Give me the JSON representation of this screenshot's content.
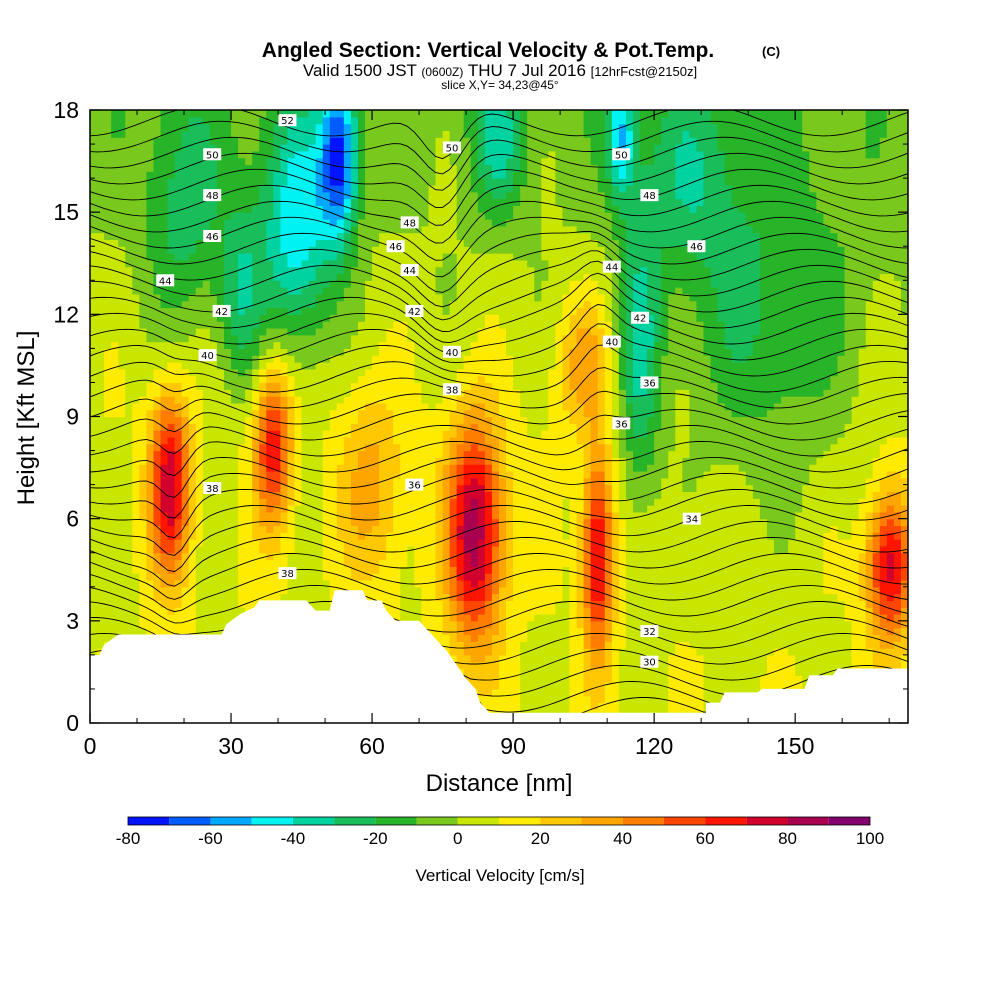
{
  "chart_data": {
    "type": "heatmap",
    "title": "Angled Section: Vertical Velocity & Pot.Temp.",
    "title_unit": "(C)",
    "subtitle": {
      "valid": "Valid 1500 JST",
      "utc": "(0600Z)",
      "date": "THU 7 Jul 2016",
      "fcst": "[12hrFcst@2150z]"
    },
    "slice_label": "slice X,Y= 34,23@45°",
    "xlabel": "Distance [nm]",
    "ylabel": "Height [Kft MSL]",
    "xlim": [
      0,
      174
    ],
    "ylim": [
      0,
      18
    ],
    "x_ticks": [
      "0",
      "30",
      "60",
      "90",
      "120",
      "150"
    ],
    "x_tick_values": [
      0,
      30,
      60,
      90,
      120,
      150
    ],
    "y_ticks": [
      "0",
      "3",
      "6",
      "9",
      "12",
      "15",
      "18"
    ],
    "y_tick_values": [
      0,
      3,
      6,
      9,
      12,
      15,
      18
    ],
    "colorbar": {
      "label": "Vertical Velocity [cm/s]",
      "levels": [
        -80,
        -70,
        -60,
        -50,
        -40,
        -30,
        -20,
        -10,
        0,
        10,
        20,
        30,
        40,
        50,
        60,
        70,
        80,
        90,
        100
      ],
      "tick_labels": [
        "-80",
        "-60",
        "-40",
        "-20",
        "0",
        "20",
        "40",
        "60",
        "80",
        "100"
      ],
      "colors": [
        "#0014ff",
        "#005cff",
        "#00a8ff",
        "#00f2f2",
        "#00d2a0",
        "#19be5a",
        "#28b428",
        "#78c81e",
        "#c8e600",
        "#ffeb00",
        "#ffc800",
        "#ffa500",
        "#ff7d00",
        "#ff4600",
        "#ff1400",
        "#d2002d",
        "#aa0050",
        "#82006e"
      ]
    },
    "terrain": [
      [
        0,
        2.0
      ],
      [
        2,
        2.0
      ],
      [
        3,
        2.3
      ],
      [
        6,
        2.6
      ],
      [
        28,
        2.6
      ],
      [
        29,
        2.9
      ],
      [
        32,
        3.2
      ],
      [
        35,
        3.4
      ],
      [
        36,
        3.6
      ],
      [
        46,
        3.6
      ],
      [
        48,
        3.3
      ],
      [
        51,
        3.3
      ],
      [
        52,
        3.9
      ],
      [
        58,
        3.9
      ],
      [
        59,
        3.6
      ],
      [
        62,
        3.6
      ],
      [
        63,
        3.3
      ],
      [
        65,
        3.0
      ],
      [
        70,
        3.0
      ],
      [
        72,
        2.7
      ],
      [
        74,
        2.4
      ],
      [
        76,
        2.1
      ],
      [
        78,
        1.7
      ],
      [
        80,
        1.3
      ],
      [
        82,
        1.0
      ],
      [
        83,
        0.6
      ],
      [
        85,
        0.3
      ],
      [
        131,
        0.3
      ],
      [
        131,
        0.6
      ],
      [
        134,
        0.6
      ],
      [
        135,
        0.9
      ],
      [
        142,
        0.9
      ],
      [
        143,
        1.0
      ],
      [
        152,
        1.0
      ],
      [
        153,
        1.4
      ],
      [
        158,
        1.4
      ],
      [
        159,
        1.6
      ],
      [
        174,
        1.6
      ]
    ],
    "features": [
      {
        "sign": "up",
        "x": 17,
        "y": 7.0,
        "sx": 3.0,
        "sy": 1.9,
        "amp": 68
      },
      {
        "sign": "up",
        "x": 39,
        "y": 8.2,
        "sx": 2.8,
        "sy": 1.7,
        "amp": 58
      },
      {
        "sign": "up",
        "x": 82,
        "y": 5.6,
        "sx": 4.2,
        "sy": 2.3,
        "amp": 78
      },
      {
        "sign": "up",
        "x": 108,
        "y": 4.9,
        "sx": 2.3,
        "sy": 2.1,
        "amp": 68
      },
      {
        "sign": "up",
        "x": 170,
        "y": 4.6,
        "sx": 3.4,
        "sy": 1.6,
        "amp": 66
      },
      {
        "sign": "up",
        "x": 60,
        "y": 7.0,
        "sx": 5.0,
        "sy": 2.0,
        "amp": 25
      },
      {
        "sign": "up",
        "x": 105,
        "y": 10.6,
        "sx": 4.0,
        "sy": 1.4,
        "amp": 28
      },
      {
        "sign": "down",
        "x": 53,
        "y": 16.6,
        "sx": 2.8,
        "sy": 1.7,
        "amp": 68
      },
      {
        "sign": "down",
        "x": 44,
        "y": 14.5,
        "sx": 5.5,
        "sy": 2.5,
        "amp": 48
      },
      {
        "sign": "down",
        "x": 32,
        "y": 12.5,
        "sx": 3.5,
        "sy": 2.0,
        "amp": 28
      },
      {
        "sign": "down",
        "x": 113,
        "y": 17.2,
        "sx": 2.2,
        "sy": 1.3,
        "amp": 45
      },
      {
        "sign": "down",
        "x": 117,
        "y": 10.5,
        "sx": 3.2,
        "sy": 3.0,
        "amp": 35
      },
      {
        "sign": "down",
        "x": 144,
        "y": 11.5,
        "sx": 14.0,
        "sy": 3.5,
        "amp": 25
      },
      {
        "sign": "down",
        "x": 87,
        "y": 17.0,
        "sx": 4.0,
        "sy": 1.5,
        "amp": 30
      },
      {
        "sign": "down",
        "x": 20,
        "y": 15.0,
        "sx": 6.0,
        "sy": 2.5,
        "amp": 25
      },
      {
        "sign": "down",
        "x": 127,
        "y": 16.0,
        "sx": 8.0,
        "sy": 2.0,
        "amp": 22
      }
    ],
    "contour_labels": [
      {
        "text": "52",
        "x": 42,
        "y": 17.7
      },
      {
        "text": "50",
        "x": 26,
        "y": 16.7
      },
      {
        "text": "50",
        "x": 77,
        "y": 16.9
      },
      {
        "text": "50",
        "x": 113,
        "y": 16.7
      },
      {
        "text": "48",
        "x": 26,
        "y": 15.5
      },
      {
        "text": "48",
        "x": 68,
        "y": 14.7
      },
      {
        "text": "48",
        "x": 119,
        "y": 15.5
      },
      {
        "text": "46",
        "x": 26,
        "y": 14.3
      },
      {
        "text": "46",
        "x": 65,
        "y": 14.0
      },
      {
        "text": "46",
        "x": 129,
        "y": 14.0
      },
      {
        "text": "44",
        "x": 16,
        "y": 13.0
      },
      {
        "text": "44",
        "x": 68,
        "y": 13.3
      },
      {
        "text": "44",
        "x": 111,
        "y": 13.4
      },
      {
        "text": "42",
        "x": 28,
        "y": 12.1
      },
      {
        "text": "42",
        "x": 69,
        "y": 12.1
      },
      {
        "text": "42",
        "x": 117,
        "y": 11.9
      },
      {
        "text": "40",
        "x": 25,
        "y": 10.8
      },
      {
        "text": "40",
        "x": 77,
        "y": 10.9
      },
      {
        "text": "40",
        "x": 111,
        "y": 11.2
      },
      {
        "text": "38",
        "x": 77,
        "y": 9.8
      },
      {
        "text": "38",
        "x": 26,
        "y": 6.9
      },
      {
        "text": "38",
        "x": 42,
        "y": 4.4
      },
      {
        "text": "36",
        "x": 69,
        "y": 7.0
      },
      {
        "text": "36",
        "x": 119,
        "y": 10.0
      },
      {
        "text": "36",
        "x": 113,
        "y": 8.8
      },
      {
        "text": "34",
        "x": 128,
        "y": 6.0
      },
      {
        "text": "32",
        "x": 119,
        "y": 2.7
      },
      {
        "text": "30",
        "x": 119,
        "y": 1.8
      }
    ]
  }
}
